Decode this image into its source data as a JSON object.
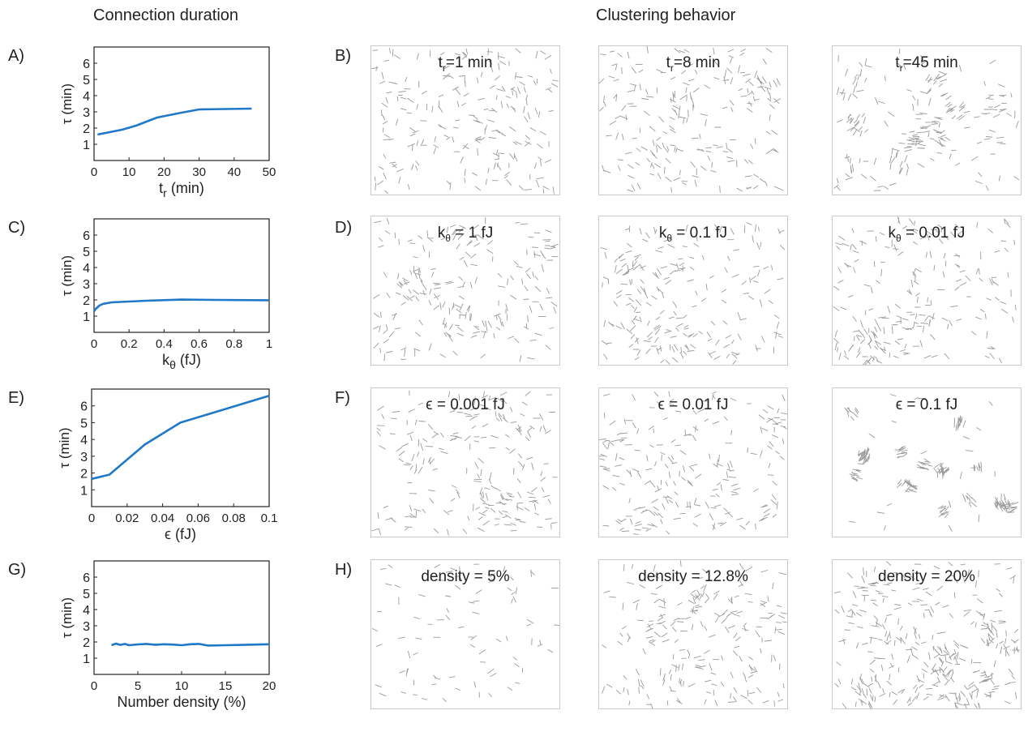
{
  "titles": {
    "left": "Connection duration",
    "right": "Clustering behavior"
  },
  "panel_labels": {
    "A": "A)",
    "B": "B)",
    "C": "C)",
    "D": "D)",
    "E": "E)",
    "F": "F)",
    "G": "G)",
    "H": "H)"
  },
  "colors": {
    "line": "#1f78c8",
    "particle": "#9a9a9a",
    "axis": "#222222"
  },
  "chart_data": [
    {
      "type": "line",
      "panel": "A",
      "ylabel": "τ (min)",
      "xlabel": "t_r (min)",
      "xlim": [
        0,
        50
      ],
      "ylim": [
        0,
        7
      ],
      "xticks": [
        0,
        10,
        20,
        30,
        40,
        50
      ],
      "xtick_labels": [
        "0",
        "10",
        "20",
        "30",
        "40",
        "50"
      ],
      "yticks": [
        1,
        2,
        3,
        4,
        5,
        6
      ],
      "x": [
        1,
        8,
        12,
        18,
        25,
        30,
        45
      ],
      "y": [
        1.6,
        1.9,
        2.15,
        2.65,
        2.95,
        3.15,
        3.2
      ]
    },
    {
      "type": "line",
      "panel": "C",
      "ylabel": "τ (min)",
      "xlabel": "k_θ (fJ)",
      "xlim": [
        0,
        1
      ],
      "ylim": [
        0,
        7
      ],
      "xticks": [
        0,
        0.2,
        0.4,
        0.6,
        0.8,
        1
      ],
      "xtick_labels": [
        "0",
        "0.2",
        "0.4",
        "0.6",
        "0.8",
        "1"
      ],
      "yticks": [
        1,
        2,
        3,
        4,
        5,
        6
      ],
      "x": [
        0,
        0.01,
        0.03,
        0.05,
        0.1,
        0.3,
        0.5,
        0.7,
        1
      ],
      "y": [
        1.3,
        1.45,
        1.65,
        1.75,
        1.85,
        1.95,
        2.02,
        2.0,
        1.98
      ]
    },
    {
      "type": "line",
      "panel": "E",
      "ylabel": "τ (min)",
      "xlabel": "ϵ (fJ)",
      "xlim": [
        0,
        0.1
      ],
      "ylim": [
        0,
        7
      ],
      "xticks": [
        0,
        0.02,
        0.04,
        0.06,
        0.08,
        0.1
      ],
      "xtick_labels": [
        "0",
        "0.02",
        "0.04",
        "0.06",
        "0.08",
        "0.1"
      ],
      "yticks": [
        1,
        2,
        3,
        4,
        5,
        6
      ],
      "x": [
        0,
        0.01,
        0.03,
        0.05,
        0.1
      ],
      "y": [
        1.65,
        1.9,
        3.7,
        5.0,
        6.6
      ]
    },
    {
      "type": "line",
      "panel": "G",
      "ylabel": "τ (min)",
      "xlabel": "Number density (%)",
      "xlim": [
        0,
        20
      ],
      "ylim": [
        0,
        7
      ],
      "xticks": [
        0,
        5,
        10,
        15,
        20
      ],
      "xtick_labels": [
        "0",
        "5",
        "10",
        "15",
        "20"
      ],
      "yticks": [
        1,
        2,
        3,
        4,
        5,
        6
      ],
      "x": [
        2,
        2.5,
        3,
        3.5,
        4,
        5,
        6,
        7,
        8,
        9,
        10,
        11,
        12,
        13,
        15,
        17,
        20
      ],
      "y": [
        1.8,
        1.9,
        1.82,
        1.88,
        1.8,
        1.85,
        1.88,
        1.83,
        1.86,
        1.84,
        1.8,
        1.86,
        1.88,
        1.78,
        1.8,
        1.82,
        1.86
      ]
    }
  ],
  "simulations": {
    "B": [
      {
        "label": "t_r=1 min",
        "clustering": 0.05
      },
      {
        "label": "t_r=8 min",
        "clustering": 0.35
      },
      {
        "label": "t_r=45 min",
        "clustering": 0.6
      }
    ],
    "D": [
      {
        "label": "k_θ = 1 fJ",
        "clustering": 0.35
      },
      {
        "label": "k_θ = 0.1 fJ",
        "clustering": 0.35
      },
      {
        "label": "k_θ = 0.01 fJ",
        "clustering": 0.3
      }
    ],
    "F": [
      {
        "label": "ϵ = 0.001 fJ",
        "clustering": 0.3
      },
      {
        "label": "ϵ = 0.01 fJ",
        "clustering": 0.35
      },
      {
        "label": "ϵ = 0.1 fJ",
        "clustering": 0.9
      }
    ],
    "H": [
      {
        "label": "density = 5%",
        "clustering": 0.2,
        "density": 5
      },
      {
        "label": "density = 12.8%",
        "clustering": 0.35,
        "density": 12.8
      },
      {
        "label": "density = 20%",
        "clustering": 0.4,
        "density": 20
      }
    ]
  }
}
